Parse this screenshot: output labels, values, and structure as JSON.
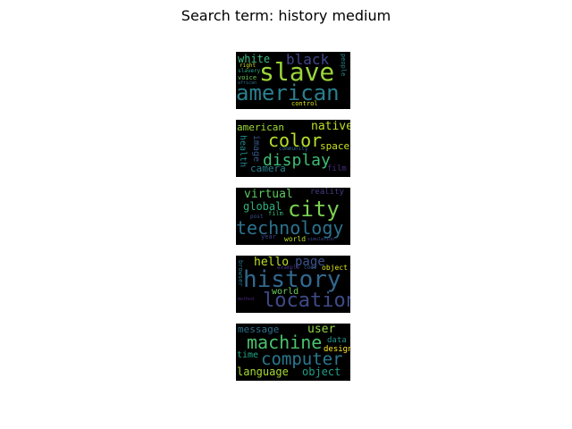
{
  "title": "Search term: history medium",
  "colors": {
    "background": "#ffffff",
    "panel": "#000000",
    "text": "#000000"
  },
  "clouds": [
    {
      "words": [
        {
          "text": "slave",
          "color": "#9ad53a"
        },
        {
          "text": "american",
          "color": "#2a7f8e"
        },
        {
          "text": "black",
          "color": "#40478a"
        },
        {
          "text": "white",
          "color": "#3fb782"
        },
        {
          "text": "right",
          "color": "#c9df2f"
        },
        {
          "text": "slavery",
          "color": "#22a884"
        },
        {
          "text": "voice",
          "color": "#6ccd5a"
        },
        {
          "text": "african",
          "color": "#2e6f8e"
        },
        {
          "text": "control",
          "color": "#dde318"
        },
        {
          "text": "people",
          "color": "#25838e"
        }
      ]
    },
    {
      "words": [
        {
          "text": "color",
          "color": "#b5de2b"
        },
        {
          "text": "display",
          "color": "#3ebc74"
        },
        {
          "text": "native",
          "color": "#c2df23"
        },
        {
          "text": "american",
          "color": "#9fda3a"
        },
        {
          "text": "image",
          "color": "#38598c"
        },
        {
          "text": "health",
          "color": "#23898e"
        },
        {
          "text": "camera",
          "color": "#277f8e"
        },
        {
          "text": "space",
          "color": "#c9e020"
        },
        {
          "text": "community",
          "color": "#31668e"
        },
        {
          "text": "film",
          "color": "#472d7b"
        }
      ]
    },
    {
      "words": [
        {
          "text": "city",
          "color": "#7ad151"
        },
        {
          "text": "technology",
          "color": "#2c728e"
        },
        {
          "text": "virtual",
          "color": "#5ec962"
        },
        {
          "text": "global",
          "color": "#2db27d"
        },
        {
          "text": "reality",
          "color": "#443a83"
        },
        {
          "text": "film",
          "color": "#35b779"
        },
        {
          "text": "post",
          "color": "#3b518b"
        },
        {
          "text": "year",
          "color": "#414487"
        },
        {
          "text": "world",
          "color": "#b8de29"
        },
        {
          "text": "simulation",
          "color": "#3e4989"
        }
      ]
    },
    {
      "words": [
        {
          "text": "history",
          "color": "#31688e"
        },
        {
          "text": "location",
          "color": "#3e4a89"
        },
        {
          "text": "hello",
          "color": "#bddf26"
        },
        {
          "text": "page",
          "color": "#3b528b"
        },
        {
          "text": "example",
          "color": "#46337e"
        },
        {
          "text": "code",
          "color": "#39568c"
        },
        {
          "text": "object",
          "color": "#dde318"
        },
        {
          "text": "browser",
          "color": "#287c8e"
        },
        {
          "text": "world",
          "color": "#6ccd5a"
        },
        {
          "text": "method",
          "color": "#482878"
        }
      ]
    },
    {
      "words": [
        {
          "text": "machine",
          "color": "#4ac16d"
        },
        {
          "text": "computer",
          "color": "#2a788e"
        },
        {
          "text": "message",
          "color": "#2d718e"
        },
        {
          "text": "user",
          "color": "#8fd744"
        },
        {
          "text": "time",
          "color": "#21a685"
        },
        {
          "text": "data",
          "color": "#20928c"
        },
        {
          "text": "design",
          "color": "#fde725"
        },
        {
          "text": "language",
          "color": "#a8db34"
        },
        {
          "text": "object",
          "color": "#1f9e89"
        }
      ]
    }
  ]
}
